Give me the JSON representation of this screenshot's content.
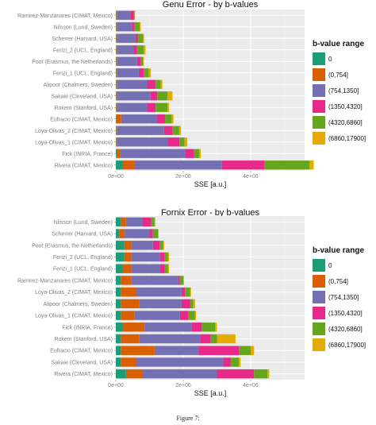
{
  "palette": {
    "panel_bg": "#ebebeb",
    "grid": "#ffffff",
    "text": "#333333",
    "tick_text": "#7f7f7f"
  },
  "caption": "Figure 7:",
  "chart_data": [
    {
      "type": "bar",
      "orientation": "horizontal",
      "stacked": true,
      "title": "Genu Error - by b-values",
      "xlabel": "SSE [a.u.]",
      "ylabel": "",
      "xlim": [
        0,
        5600000
      ],
      "xticks": [
        0,
        2000000,
        4000000
      ],
      "xtick_labels": [
        "0e+00",
        "2e+06",
        "4e+06"
      ],
      "grid": true,
      "legend": {
        "title": "b-value range",
        "position": "right"
      },
      "categories": [
        "Ramirez-Manzanares (CIMAT, Mexico)",
        "Nilsson (Lund, Sweden)",
        "Scherrer (Harvard, USA)",
        "Ferizi_2 (UCL, England)",
        "Poot (Erasmus, the Netherlands)",
        "Ferizi_1 (UCL, England)",
        "Alipoor (Chalmers, Sweden)",
        "Sakaie (Cleveland, USA)",
        "Rokem (Stanford, USA)",
        "Eufracio (CIMAT, Mexico)",
        "Loya-Olivas_2 (CIMAT, Mexico)",
        "Loya-Olivas_1 (CIMAT, Mexico)",
        "Fick (INRIA, France)",
        "Rivera (CIMAT, Mexico)"
      ],
      "series": [
        {
          "name": "0",
          "color": "#1b9e77",
          "values": [
            10000,
            10000,
            10000,
            10000,
            10000,
            10000,
            10000,
            10000,
            10000,
            10000,
            10000,
            10000,
            20000,
            200000
          ]
        },
        {
          "name": "(0,754]",
          "color": "#d95f02",
          "values": [
            20000,
            20000,
            20000,
            20000,
            20000,
            20000,
            20000,
            20000,
            20000,
            150000,
            20000,
            30000,
            100000,
            350000
          ]
        },
        {
          "name": "(754,1350]",
          "color": "#7570b3",
          "values": [
            400000,
            450000,
            550000,
            500000,
            600000,
            650000,
            900000,
            1000000,
            900000,
            1050000,
            1400000,
            1500000,
            1950000,
            2600000
          ]
        },
        {
          "name": "(1350,4320]",
          "color": "#e7298a",
          "values": [
            100000,
            80000,
            80000,
            100000,
            100000,
            150000,
            250000,
            200000,
            250000,
            250000,
            250000,
            350000,
            250000,
            1250000
          ]
        },
        {
          "name": "(4320,6860]",
          "color": "#66a61e",
          "values": [
            30000,
            150000,
            150000,
            200000,
            80000,
            150000,
            150000,
            300000,
            350000,
            200000,
            200000,
            150000,
            150000,
            1350000
          ]
        },
        {
          "name": "(6860,17900]",
          "color": "#e6ab02",
          "values": [
            10000,
            30000,
            30000,
            50000,
            20000,
            60000,
            50000,
            150000,
            50000,
            50000,
            50000,
            80000,
            50000,
            120000
          ]
        }
      ]
    },
    {
      "type": "bar",
      "orientation": "horizontal",
      "stacked": true,
      "title": "Fornix Error - by b-values",
      "xlabel": "SSE [a.u.]",
      "ylabel": "",
      "xlim": [
        0,
        5600000
      ],
      "xticks": [
        0,
        2000000,
        4000000
      ],
      "xtick_labels": [
        "0e+00",
        "2e+06",
        "4e+06"
      ],
      "grid": true,
      "legend": {
        "title": "b-value range",
        "position": "right"
      },
      "categories": [
        "Nilsson (Lund, Sweden)",
        "Scherrer (Harvard, USA)",
        "Poot (Erasmus, the Netherlands)",
        "Ferizi_2 (UCL, England)",
        "Ferizi_1 (UCL, England)",
        "Ramirez-Manzanares (CIMAT, Mexico)",
        "Loya-Olivas_2 (CIMAT, Mexico)",
        "Alipoor (Chalmers, Sweden)",
        "Loya-Olivas_1 (CIMAT, Mexico)",
        "Fick (INRIA, France)",
        "Rokem (Stanford, USA)",
        "Eufracio (CIMAT, Mexico)",
        "Sakaie (Cleveland, USA)",
        "Rivera (CIMAT, Mexico)"
      ],
      "series": [
        {
          "name": "0",
          "color": "#1b9e77",
          "values": [
            150000,
            100000,
            250000,
            250000,
            200000,
            150000,
            150000,
            150000,
            150000,
            200000,
            150000,
            150000,
            150000,
            300000
          ]
        },
        {
          "name": "(0,754]",
          "color": "#d95f02",
          "values": [
            150000,
            150000,
            200000,
            200000,
            250000,
            300000,
            450000,
            550000,
            400000,
            650000,
            550000,
            1000000,
            450000,
            500000
          ]
        },
        {
          "name": "(754,1350]",
          "color": "#7570b3",
          "values": [
            500000,
            750000,
            650000,
            850000,
            850000,
            1400000,
            1350000,
            1250000,
            1350000,
            1400000,
            1800000,
            1300000,
            2600000,
            2200000
          ]
        },
        {
          "name": "(1350,4320]",
          "color": "#e7298a",
          "values": [
            250000,
            100000,
            200000,
            150000,
            150000,
            50000,
            100000,
            250000,
            250000,
            300000,
            300000,
            1200000,
            200000,
            1100000
          ]
        },
        {
          "name": "(4320,6860]",
          "color": "#66a61e",
          "values": [
            100000,
            150000,
            100000,
            100000,
            100000,
            100000,
            150000,
            100000,
            200000,
            400000,
            200000,
            350000,
            250000,
            400000
          ]
        },
        {
          "name": "(6860,17900]",
          "color": "#e6ab02",
          "values": [
            20000,
            20000,
            30000,
            30000,
            30000,
            20000,
            30000,
            50000,
            30000,
            50000,
            550000,
            100000,
            50000,
            50000
          ]
        }
      ]
    }
  ]
}
